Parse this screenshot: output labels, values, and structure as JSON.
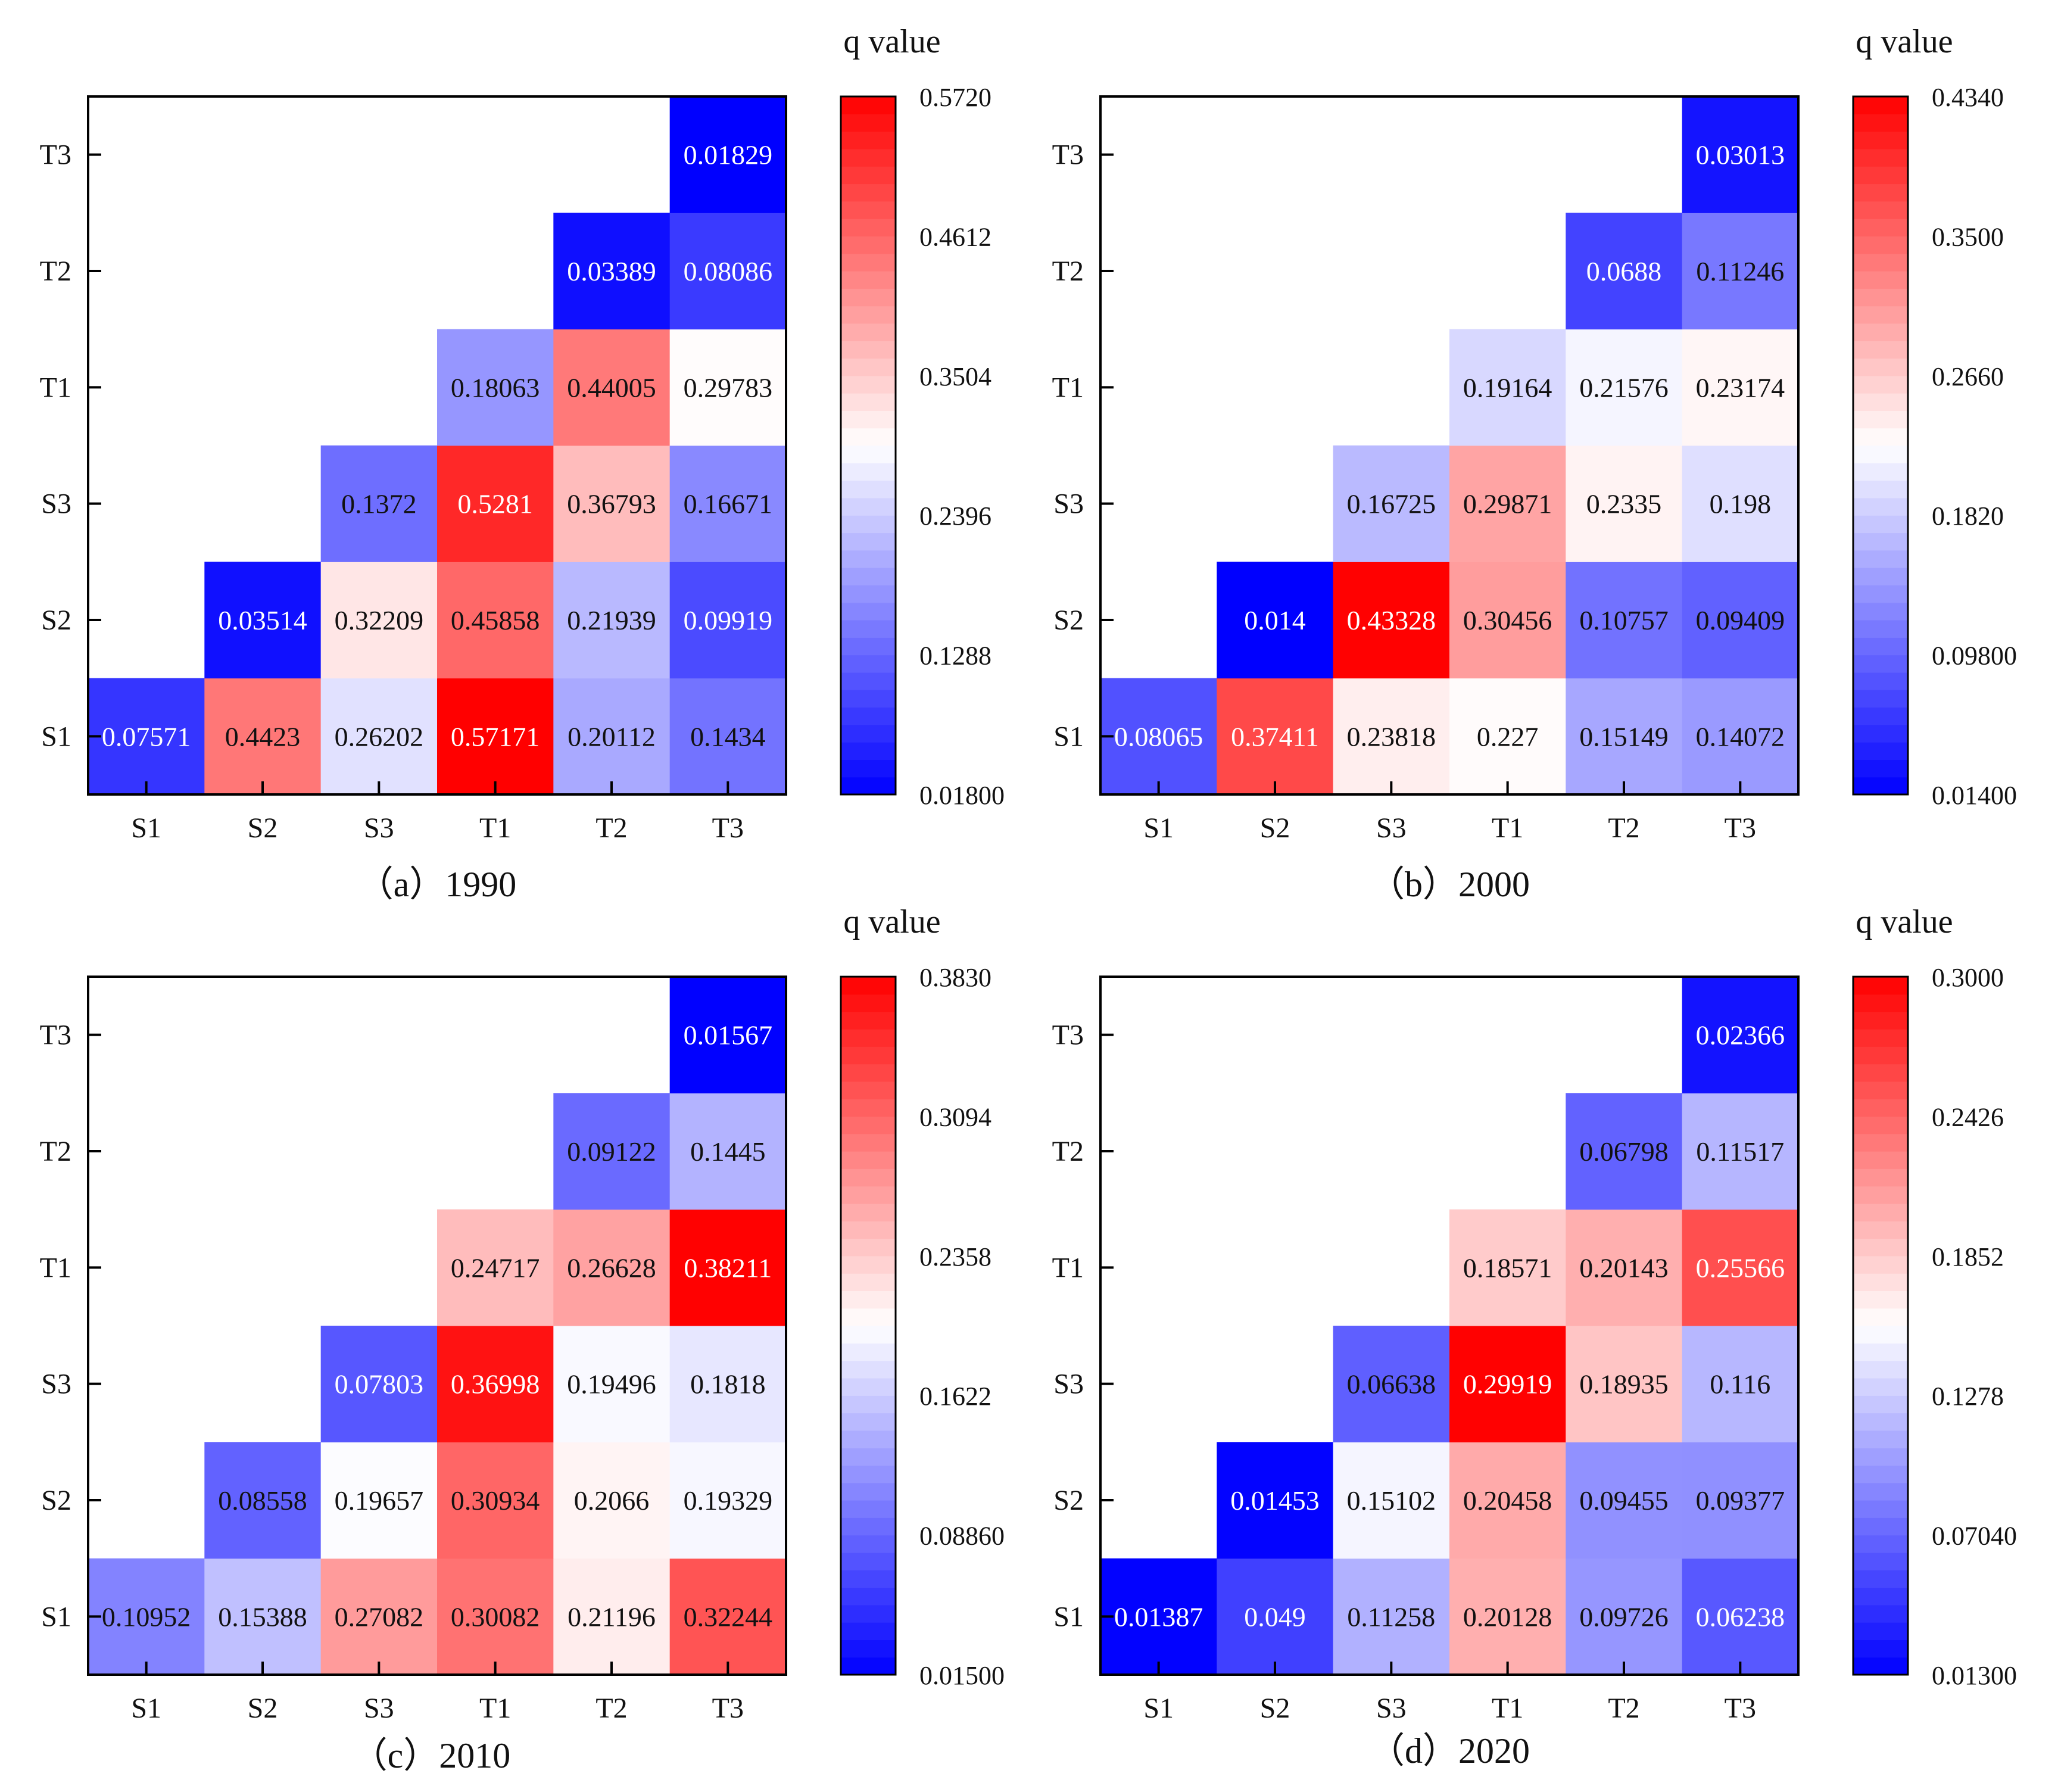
{
  "chart_data": [
    {
      "type": "heatmap",
      "caption": "（a）1990",
      "colorbar_title": "q value",
      "x_categories": [
        "S1",
        "S2",
        "S3",
        "T1",
        "T2",
        "T3"
      ],
      "y_categories": [
        "S1",
        "S2",
        "S3",
        "T1",
        "T2",
        "T3"
      ],
      "cells": [
        [
          "0.07571",
          "0.4423",
          "0.26202",
          "0.57171",
          "0.20112",
          "0.1434"
        ],
        [
          null,
          "0.03514",
          "0.32209",
          "0.45858",
          "0.21939",
          "0.09919"
        ],
        [
          null,
          null,
          "0.1372",
          "0.5281",
          "0.36793",
          "0.16671"
        ],
        [
          null,
          null,
          null,
          "0.18063",
          "0.44005",
          "0.29783"
        ],
        [
          null,
          null,
          null,
          null,
          "0.03389",
          "0.08086"
        ],
        [
          null,
          null,
          null,
          null,
          null,
          "0.01829"
        ]
      ],
      "color_range": [
        0.018,
        0.572
      ],
      "colorbar_ticks": [
        "0.01800",
        "0.1288",
        "0.2396",
        "0.3504",
        "0.4612",
        "0.5720"
      ]
    },
    {
      "type": "heatmap",
      "caption": "（b）2000",
      "colorbar_title": "q value",
      "x_categories": [
        "S1",
        "S2",
        "S3",
        "T1",
        "T2",
        "T3"
      ],
      "y_categories": [
        "S1",
        "S2",
        "S3",
        "T1",
        "T2",
        "T3"
      ],
      "cells": [
        [
          "0.08065",
          "0.37411",
          "0.23818",
          "0.227",
          "0.15149",
          "0.14072"
        ],
        [
          null,
          "0.014",
          "0.43328",
          "0.30456",
          "0.10757",
          "0.09409"
        ],
        [
          null,
          null,
          "0.16725",
          "0.29871",
          "0.2335",
          "0.198"
        ],
        [
          null,
          null,
          null,
          "0.19164",
          "0.21576",
          "0.23174"
        ],
        [
          null,
          null,
          null,
          null,
          "0.0688",
          "0.11246"
        ],
        [
          null,
          null,
          null,
          null,
          null,
          "0.03013"
        ]
      ],
      "color_range": [
        0.014,
        0.434
      ],
      "colorbar_ticks": [
        "0.01400",
        "0.09800",
        "0.1820",
        "0.2660",
        "0.3500",
        "0.4340"
      ]
    },
    {
      "type": "heatmap",
      "caption": "（c）2010",
      "colorbar_title": "q value",
      "x_categories": [
        "S1",
        "S2",
        "S3",
        "T1",
        "T2",
        "T3"
      ],
      "y_categories": [
        "S1",
        "S2",
        "S3",
        "T1",
        "T2",
        "T3"
      ],
      "cells": [
        [
          "0.10952",
          "0.15388",
          "0.27082",
          "0.30082",
          "0.21196",
          "0.32244"
        ],
        [
          null,
          "0.08558",
          "0.19657",
          "0.30934",
          "0.2066",
          "0.19329"
        ],
        [
          null,
          null,
          "0.07803",
          "0.36998",
          "0.19496",
          "0.1818"
        ],
        [
          null,
          null,
          null,
          "0.24717",
          "0.26628",
          "0.38211"
        ],
        [
          null,
          null,
          null,
          null,
          "0.09122",
          "0.1445"
        ],
        [
          null,
          null,
          null,
          null,
          null,
          "0.01567"
        ]
      ],
      "color_range": [
        0.015,
        0.383
      ],
      "colorbar_ticks": [
        "0.01500",
        "0.08860",
        "0.1622",
        "0.2358",
        "0.3094",
        "0.3830"
      ]
    },
    {
      "type": "heatmap",
      "caption": "（d）2020",
      "colorbar_title": "q value",
      "x_categories": [
        "S1",
        "S2",
        "S3",
        "T1",
        "T2",
        "T3"
      ],
      "y_categories": [
        "S1",
        "S2",
        "S3",
        "T1",
        "T2",
        "T3"
      ],
      "cells": [
        [
          "0.01387",
          "0.049",
          "0.11258",
          "0.20128",
          "0.09726",
          "0.06238"
        ],
        [
          null,
          "0.01453",
          "0.15102",
          "0.20458",
          "0.09455",
          "0.09377"
        ],
        [
          null,
          null,
          "0.06638",
          "0.29919",
          "0.18935",
          "0.116"
        ],
        [
          null,
          null,
          null,
          "0.18571",
          "0.20143",
          "0.25566"
        ],
        [
          null,
          null,
          null,
          null,
          "0.06798",
          "0.11517"
        ],
        [
          null,
          null,
          null,
          null,
          null,
          "0.02366"
        ]
      ],
      "color_range": [
        0.013,
        0.3
      ],
      "colorbar_ticks": [
        "0.01300",
        "0.07040",
        "0.1278",
        "0.1852",
        "0.2426",
        "0.3000"
      ]
    }
  ],
  "colors": {
    "low": "#0000ff",
    "mid": "#ffffff",
    "high": "#ff0000",
    "axis": "#000000"
  }
}
